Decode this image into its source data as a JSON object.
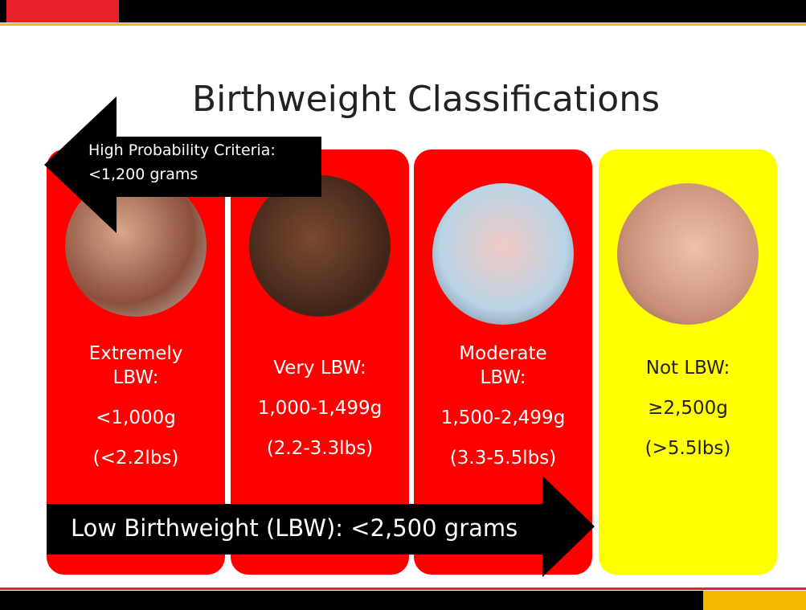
{
  "title": "Birthweight Classifications",
  "callout": {
    "lines": [
      "High Probability Criteria:",
      "<1,200 grams"
    ]
  },
  "banner": "Low Birthweight (LBW): <2,500 grams",
  "classes": [
    {
      "label": [
        "Extremely",
        "LBW:"
      ],
      "grams": "<1,000g",
      "pounds": "(<2.2lbs)"
    },
    {
      "label": [
        "Very LBW:"
      ],
      "grams": "1,000-1,499g",
      "pounds": "(2.2-3.3lbs)"
    },
    {
      "label": [
        "Moderate",
        "LBW:"
      ],
      "grams": "1,500-2,499g",
      "pounds": "(3.3-5.5lbs)"
    },
    {
      "label": [
        "Not LBW:"
      ],
      "grams": "≥2,500g",
      "pounds": "(>5.5lbs)"
    }
  ]
}
